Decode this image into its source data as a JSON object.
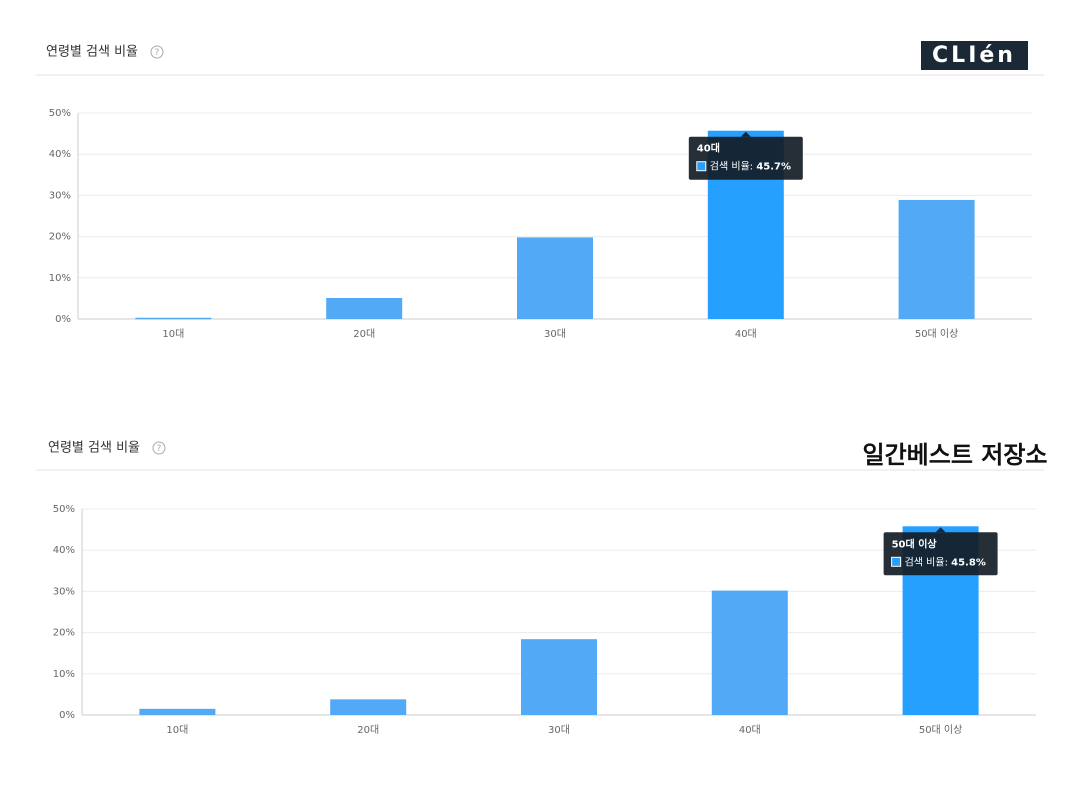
{
  "chart_data": [
    {
      "type": "bar",
      "title": "연령별 검색 비율",
      "logo": "CLIén",
      "categories": [
        "10대",
        "20대",
        "30대",
        "40대",
        "50대 이상"
      ],
      "series": [
        {
          "name": "검색 비율",
          "values": [
            0.3,
            5.1,
            19.8,
            45.7,
            28.9
          ],
          "colors": [
            "#52a9f5",
            "#52a9f5",
            "#52a9f5",
            "#26a0ff",
            "#52a9f5"
          ]
        }
      ],
      "ylim": [
        0,
        50
      ],
      "yticks": [
        {
          "value": 0,
          "label": "0%"
        },
        {
          "value": 10,
          "label": "10%"
        },
        {
          "value": 20,
          "label": "20%"
        },
        {
          "value": 30,
          "label": "30%"
        },
        {
          "value": 40,
          "label": "40%"
        },
        {
          "value": 50,
          "label": "50%"
        }
      ],
      "grid": true,
      "tooltip": {
        "title": "40대",
        "value_label": "45.7%"
      }
    },
    {
      "type": "bar",
      "title": "연령별 검색 비율",
      "logo": "일간베스트 저장소",
      "categories": [
        "10대",
        "20대",
        "30대",
        "40대",
        "50대 이상"
      ],
      "series": [
        {
          "name": "검색 비율",
          "values": [
            1.5,
            3.8,
            18.4,
            30.2,
            45.8
          ],
          "colors": [
            "#52a9f5",
            "#52a9f5",
            "#52a9f5",
            "#52a9f5",
            "#26a0ff"
          ]
        }
      ],
      "ylim": [
        0,
        50
      ],
      "yticks": [
        {
          "value": 0,
          "label": "0%"
        },
        {
          "value": 10,
          "label": "10%"
        },
        {
          "value": 20,
          "label": "20%"
        },
        {
          "value": 30,
          "label": "30%"
        },
        {
          "value": 40,
          "label": "40%"
        },
        {
          "value": 50,
          "label": "50%"
        }
      ],
      "grid": true,
      "tooltip": {
        "title": "50대 이상",
        "value_label": "45.8%"
      }
    }
  ]
}
